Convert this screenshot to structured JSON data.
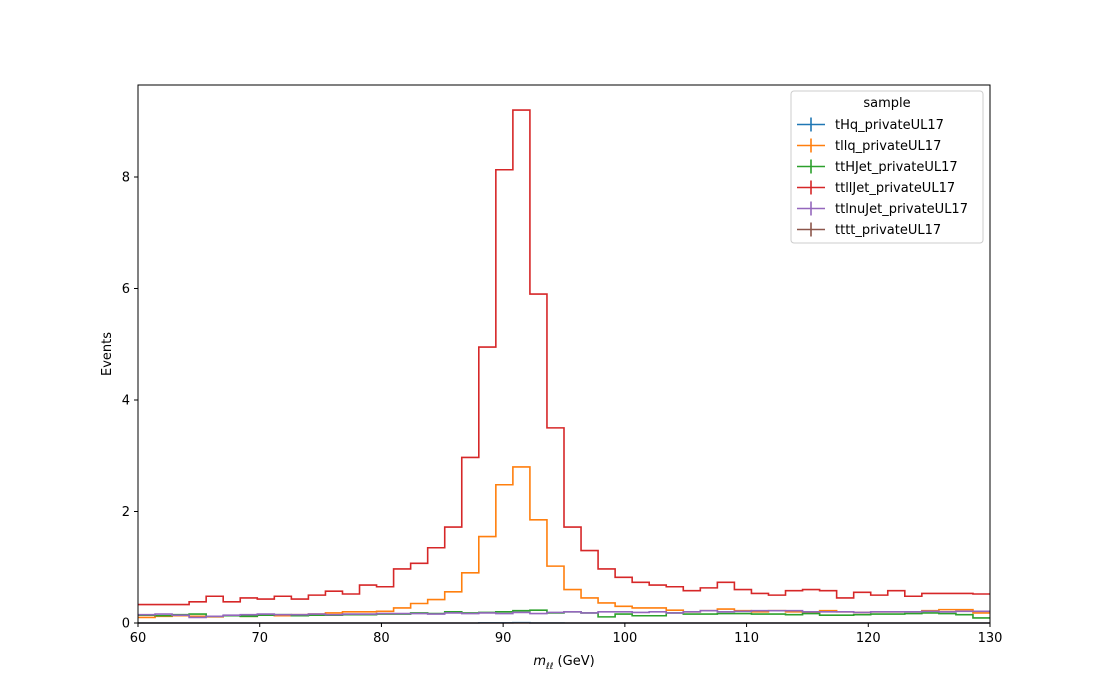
{
  "chart_data": {
    "type": "line",
    "title": "",
    "xlabel": "m_ℓℓ (GeV)",
    "xlabel_main": "m",
    "xlabel_sub": "ℓℓ",
    "xlabel_unit": " (GeV)",
    "ylabel": "Events",
    "xlim": [
      60,
      130
    ],
    "ylim": [
      0,
      9.65
    ],
    "x_ticks": [
      60,
      70,
      80,
      90,
      100,
      110,
      120,
      130
    ],
    "y_ticks": [
      0,
      2,
      4,
      6,
      8
    ],
    "grid": false,
    "legend": {
      "title": "sample",
      "placement": "top-right"
    },
    "bin_edges": [
      60,
      61.4,
      62.8,
      64.2,
      65.6,
      67,
      68.4,
      69.8,
      71.2,
      72.6,
      74,
      75.4,
      76.8,
      78.2,
      79.6,
      81,
      82.4,
      83.8,
      85.2,
      86.6,
      88,
      89.4,
      90.8,
      92.2,
      93.6,
      95,
      96.4,
      97.8,
      99.2,
      100.6,
      102,
      103.4,
      104.8,
      106.2,
      107.6,
      109,
      110.4,
      111.8,
      113.2,
      114.6,
      116,
      117.4,
      118.8,
      120.2,
      121.6,
      123,
      124.4,
      125.8,
      127.2,
      128.6,
      130
    ],
    "series": [
      {
        "name": "tHq_privateUL17",
        "color": "#1f77b4",
        "values": [
          0,
          0,
          0,
          0,
          0,
          0,
          0,
          0,
          0,
          0,
          0,
          0,
          0,
          0,
          0,
          0,
          0,
          0,
          0,
          0,
          0.004,
          0.003,
          0.005,
          0.002,
          0.001,
          0,
          0,
          0,
          0,
          0,
          0,
          0,
          0,
          0,
          0,
          0,
          0,
          0,
          0,
          0,
          0,
          0,
          0,
          0,
          0,
          0,
          0,
          0,
          0,
          0
        ]
      },
      {
        "name": "tllq_privateUL17",
        "color": "#ff7f0e",
        "values": [
          0.1,
          0.12,
          0.13,
          0.12,
          0.11,
          0.13,
          0.12,
          0.14,
          0.13,
          0.15,
          0.16,
          0.18,
          0.2,
          0.2,
          0.21,
          0.27,
          0.35,
          0.42,
          0.56,
          0.9,
          1.55,
          2.48,
          2.8,
          1.85,
          1.02,
          0.6,
          0.45,
          0.36,
          0.3,
          0.27,
          0.27,
          0.23,
          0.2,
          0.22,
          0.25,
          0.22,
          0.2,
          0.22,
          0.2,
          0.18,
          0.22,
          0.2,
          0.19,
          0.2,
          0.2,
          0.2,
          0.22,
          0.24,
          0.24,
          0.18
        ]
      },
      {
        "name": "ttHJet_privateUL17",
        "color": "#2ca02c",
        "values": [
          0.14,
          0.13,
          0.15,
          0.16,
          0.12,
          0.13,
          0.12,
          0.14,
          0.15,
          0.13,
          0.14,
          0.14,
          0.15,
          0.15,
          0.16,
          0.16,
          0.18,
          0.17,
          0.2,
          0.18,
          0.19,
          0.2,
          0.22,
          0.23,
          0.18,
          0.2,
          0.18,
          0.11,
          0.16,
          0.13,
          0.13,
          0.18,
          0.16,
          0.16,
          0.17,
          0.17,
          0.16,
          0.16,
          0.15,
          0.17,
          0.14,
          0.14,
          0.15,
          0.16,
          0.16,
          0.17,
          0.18,
          0.17,
          0.15,
          0.09
        ]
      },
      {
        "name": "ttllJet_privateUL17",
        "color": "#d62728",
        "values": [
          0.33,
          0.33,
          0.33,
          0.38,
          0.48,
          0.38,
          0.45,
          0.43,
          0.48,
          0.43,
          0.5,
          0.57,
          0.52,
          0.68,
          0.65,
          0.97,
          1.07,
          1.35,
          1.72,
          2.97,
          4.95,
          8.13,
          9.2,
          5.9,
          3.5,
          1.72,
          1.3,
          0.97,
          0.82,
          0.73,
          0.68,
          0.65,
          0.58,
          0.63,
          0.73,
          0.6,
          0.53,
          0.5,
          0.58,
          0.6,
          0.58,
          0.45,
          0.55,
          0.5,
          0.58,
          0.48,
          0.53,
          0.53,
          0.53,
          0.52
        ]
      },
      {
        "name": "ttlnuJet_privateUL17",
        "color": "#9467bd",
        "values": [
          0.15,
          0.16,
          0.14,
          0.1,
          0.12,
          0.14,
          0.15,
          0.16,
          0.15,
          0.15,
          0.16,
          0.15,
          0.16,
          0.16,
          0.17,
          0.17,
          0.17,
          0.16,
          0.18,
          0.17,
          0.18,
          0.17,
          0.19,
          0.17,
          0.19,
          0.2,
          0.18,
          0.2,
          0.2,
          0.19,
          0.2,
          0.18,
          0.2,
          0.22,
          0.2,
          0.21,
          0.22,
          0.22,
          0.22,
          0.2,
          0.2,
          0.2,
          0.19,
          0.2,
          0.2,
          0.2,
          0.21,
          0.2,
          0.21,
          0.21
        ]
      },
      {
        "name": "tttt_privateUL17",
        "color": "#8c564b",
        "values": [
          0,
          0,
          0,
          0,
          0,
          0,
          0,
          0,
          0,
          0,
          0,
          0,
          0,
          0,
          0,
          0,
          0,
          0,
          0,
          0,
          0,
          0,
          0,
          0,
          0,
          0,
          0,
          0,
          0,
          0,
          0,
          0,
          0,
          0,
          0,
          0,
          0,
          0,
          0,
          0,
          0,
          0,
          0,
          0,
          0,
          0,
          0,
          0,
          0,
          0
        ]
      }
    ]
  }
}
